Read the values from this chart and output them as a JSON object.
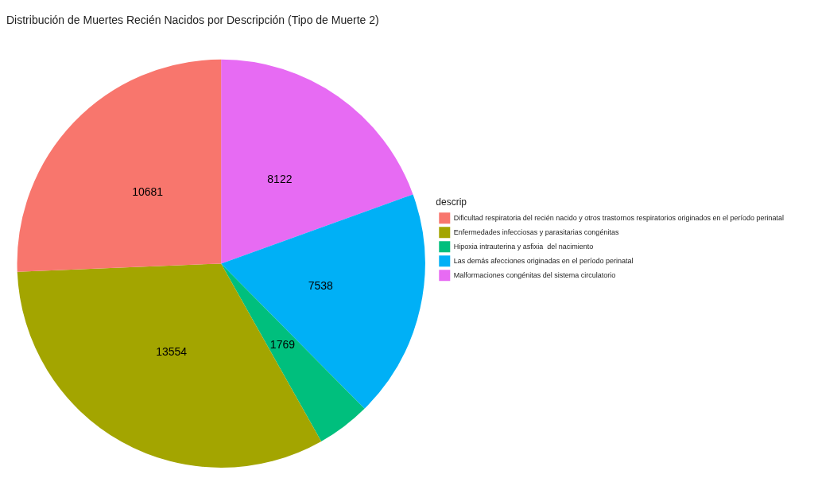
{
  "chart_data": {
    "type": "pie",
    "title": "Distribución de Muertes Recién Nacidos por Descripción (Tipo de Muerte 2)",
    "legend_title": "descrip",
    "legend": "right",
    "categories": [
      "Dificultad respiratoria del recién nacido y otros trastornos respiratorios originados en el período perinatal",
      "Enfermedades infecciosas y parasitarias congénitas",
      "Hipoxia intrauterina y asfixia  del nacimiento",
      "Las demás afecciones originadas en el período perinatal",
      "Malformaciones congénitas del sistema circulatorio"
    ],
    "values": [
      10681,
      13554,
      1769,
      7538,
      8122
    ],
    "colors": [
      "#f8766d",
      "#a3a500",
      "#00bf7d",
      "#00b0f6",
      "#e76bf3"
    ],
    "data_labels": true
  }
}
